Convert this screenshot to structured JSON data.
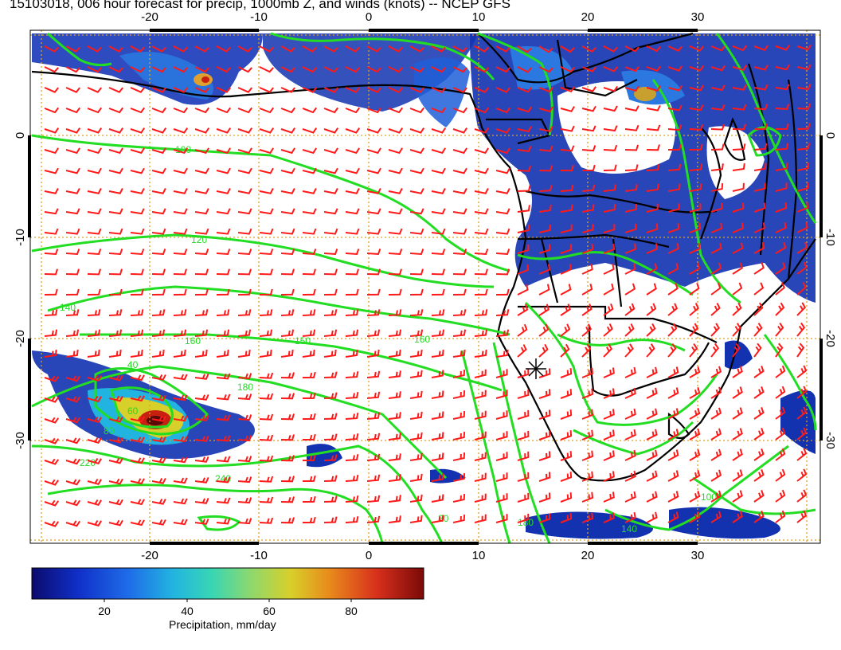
{
  "title": "15103018, 006 hour forecast for precip, 1000mb Z, and winds (knots) -- NCEP GFS",
  "lon_ticks_top": [
    "-20",
    "-10",
    "0",
    "10",
    "20",
    "30"
  ],
  "lon_ticks_bottom": [
    "-20",
    "-10",
    "0",
    "10",
    "20",
    "30"
  ],
  "lat_ticks_left": [
    "0",
    "-10",
    "-20",
    "-30"
  ],
  "lat_ticks_right": [
    "0",
    "-10",
    "-20",
    "-30"
  ],
  "contour_labels": [
    "100",
    "120",
    "140",
    "150",
    "160",
    "180",
    "220",
    "40",
    "60",
    "80",
    "240",
    "20",
    "160",
    "180",
    "140",
    "100"
  ],
  "colorbar": {
    "label": "Precipitation, mm/day",
    "ticks": [
      "20",
      "40",
      "60",
      "80"
    ],
    "colors": [
      "#0b0b6e",
      "#1030c8",
      "#1f6ee8",
      "#22b4e0",
      "#38d6b4",
      "#8ed86c",
      "#d8d02a",
      "#e88a1c",
      "#d8301c",
      "#7a0a08"
    ]
  },
  "colors": {
    "contour": "#22dd22",
    "barb": "#ff1a1a",
    "grid": "#e0a020",
    "coast": "#000000"
  },
  "marker_icon": "station-cross-icon"
}
